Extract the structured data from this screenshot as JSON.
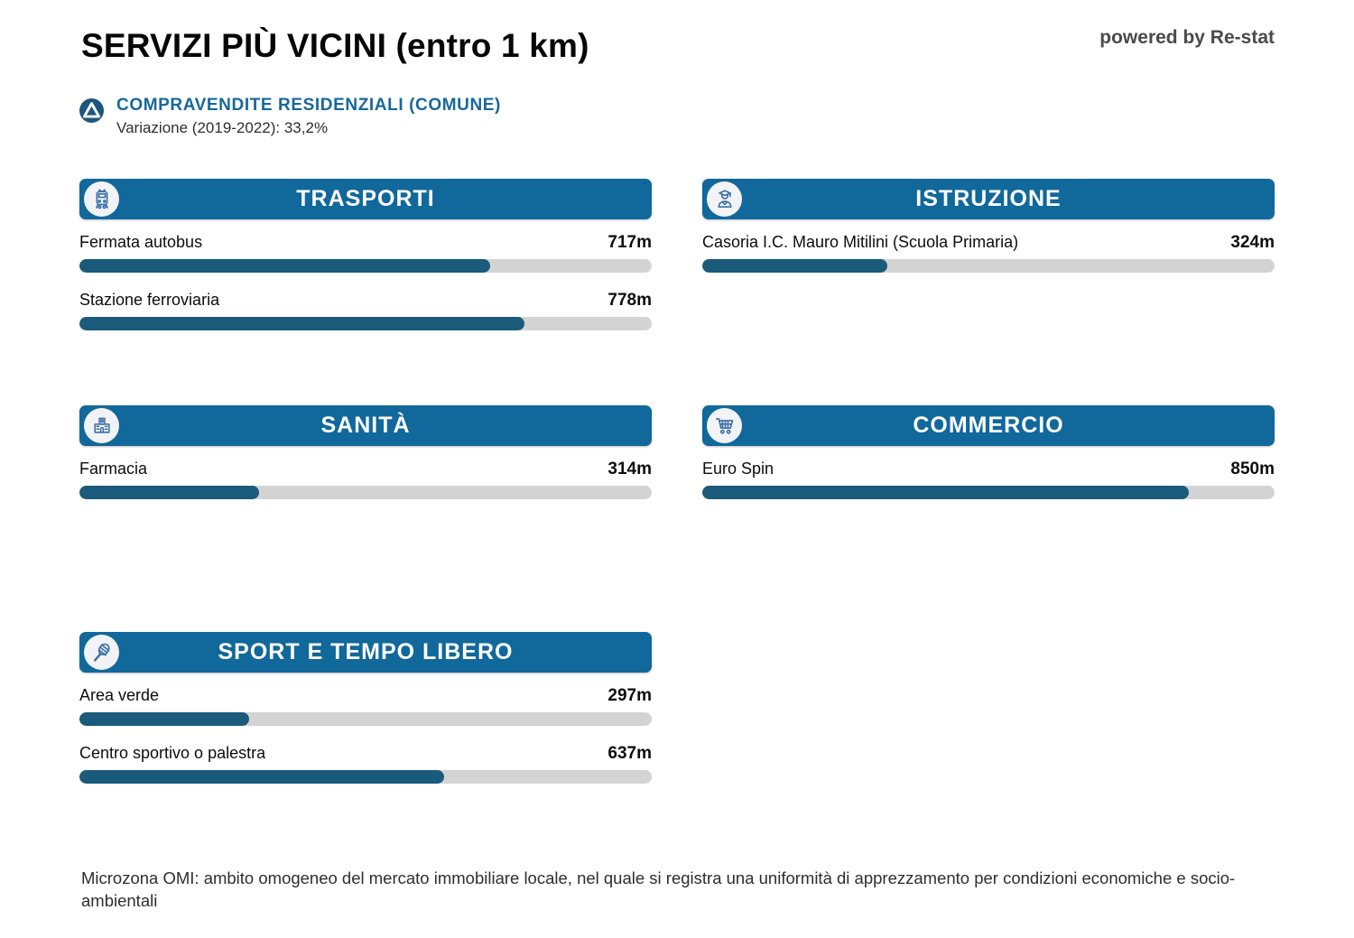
{
  "page_title": "SERVIZI PIÙ VICINI (entro 1 km)",
  "powered_by": "powered by Re-stat",
  "summary": {
    "icon": "triangle-up-icon",
    "label": "COMPRAVENDITE RESIDENZIALI (COMUNE)",
    "variation": "Variazione (2019-2022): 33,2%"
  },
  "colors": {
    "header_blue": "#11689b",
    "bar_fill": "#1a5a7b",
    "bar_track": "#d3d3d3",
    "accent_text_blue": "#176899",
    "summary_icon_circle": "#1d567e",
    "icon_glyph_blue": "#3d6fa5"
  },
  "sections": [
    {
      "title": "TRASPORTI",
      "icon": "train-icon",
      "items": [
        {
          "label": "Fermata autobus",
          "value": "717m",
          "pct": 71.7
        },
        {
          "label": "Stazione ferroviaria",
          "value": "778m",
          "pct": 77.8
        }
      ]
    },
    {
      "title": "ISTRUZIONE",
      "icon": "graduate-icon",
      "items": [
        {
          "label": "Casoria I.C. Mauro Mitilini (Scuola Primaria)",
          "value": "324m",
          "pct": 32.4
        }
      ]
    },
    {
      "title": "SANITÀ",
      "icon": "hospital-icon",
      "items": [
        {
          "label": "Farmacia",
          "value": "314m",
          "pct": 31.4
        }
      ]
    },
    {
      "title": "COMMERCIO",
      "icon": "cart-icon",
      "items": [
        {
          "label": "Euro Spin",
          "value": "850m",
          "pct": 85.0
        }
      ]
    },
    {
      "title": "SPORT E TEMPO LIBERO",
      "icon": "racket-icon",
      "items": [
        {
          "label": "Area verde",
          "value": "297m",
          "pct": 29.7
        },
        {
          "label": "Centro sportivo o palestra",
          "value": "637m",
          "pct": 63.7
        }
      ]
    }
  ],
  "footer": "Microzona OMI: ambito omogeneo del mercato immobiliare locale, nel quale si registra una uniformità di apprezzamento per condizioni economiche e socio-ambientali",
  "chart_data": [
    {
      "type": "bar",
      "title": "TRASPORTI",
      "categories": [
        "Fermata autobus",
        "Stazione ferroviaria"
      ],
      "values": [
        717,
        778
      ],
      "unit": "m",
      "xlim": [
        0,
        1000
      ],
      "orientation": "horizontal",
      "grid": false
    },
    {
      "type": "bar",
      "title": "ISTRUZIONE",
      "categories": [
        "Casoria I.C. Mauro Mitilini (Scuola Primaria)"
      ],
      "values": [
        324
      ],
      "unit": "m",
      "xlim": [
        0,
        1000
      ],
      "orientation": "horizontal",
      "grid": false
    },
    {
      "type": "bar",
      "title": "SANITÀ",
      "categories": [
        "Farmacia"
      ],
      "values": [
        314
      ],
      "unit": "m",
      "xlim": [
        0,
        1000
      ],
      "orientation": "horizontal",
      "grid": false
    },
    {
      "type": "bar",
      "title": "COMMERCIO",
      "categories": [
        "Euro Spin"
      ],
      "values": [
        850
      ],
      "unit": "m",
      "xlim": [
        0,
        1000
      ],
      "orientation": "horizontal",
      "grid": false
    },
    {
      "type": "bar",
      "title": "SPORT E TEMPO LIBERO",
      "categories": [
        "Area verde",
        "Centro sportivo o palestra"
      ],
      "values": [
        297,
        637
      ],
      "unit": "m",
      "xlim": [
        0,
        1000
      ],
      "orientation": "horizontal",
      "grid": false
    }
  ]
}
